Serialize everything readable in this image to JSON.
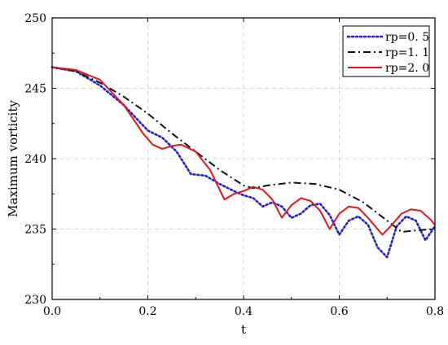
{
  "chart_data": {
    "type": "line",
    "xlabel": "t",
    "ylabel": "Maximum vorticity",
    "xlim": [
      0.0,
      0.8
    ],
    "ylim": [
      230,
      250
    ],
    "xticks": [
      "0.0",
      "0.2",
      "0.4",
      "0.6",
      "0.8"
    ],
    "yticks": [
      "230",
      "235",
      "240",
      "245",
      "250"
    ],
    "grid": true,
    "legend_position": "top-right",
    "series": [
      {
        "name": "rp=0. 5",
        "color": "#1f1fd6",
        "style": "dotted",
        "x": [
          0.0,
          0.05,
          0.1,
          0.15,
          0.2,
          0.23,
          0.26,
          0.29,
          0.32,
          0.35,
          0.38,
          0.4,
          0.42,
          0.44,
          0.46,
          0.48,
          0.5,
          0.52,
          0.54,
          0.56,
          0.58,
          0.6,
          0.62,
          0.64,
          0.66,
          0.68,
          0.7,
          0.72,
          0.74,
          0.76,
          0.78,
          0.8
        ],
        "y": [
          246.5,
          246.2,
          245.2,
          243.8,
          242.0,
          241.5,
          240.5,
          238.9,
          238.8,
          238.2,
          237.7,
          237.4,
          237.2,
          236.6,
          236.9,
          236.6,
          235.8,
          236.1,
          236.7,
          236.8,
          236.0,
          234.6,
          235.6,
          235.9,
          235.3,
          233.7,
          233.0,
          235.2,
          235.9,
          235.6,
          234.2,
          235.2
        ]
      },
      {
        "name": "rp=1. 1",
        "color": "#111111",
        "style": "dashdot",
        "x": [
          0.0,
          0.05,
          0.1,
          0.15,
          0.2,
          0.25,
          0.3,
          0.35,
          0.4,
          0.42,
          0.45,
          0.5,
          0.55,
          0.6,
          0.65,
          0.7,
          0.73,
          0.76,
          0.8
        ],
        "y": [
          246.5,
          246.2,
          245.4,
          244.4,
          243.2,
          241.8,
          240.5,
          239.2,
          238.1,
          237.9,
          238.1,
          238.3,
          238.2,
          237.8,
          236.9,
          235.6,
          234.8,
          234.9,
          235.0
        ]
      },
      {
        "name": "rp=2. 0",
        "color": "#e8141c",
        "style": "solid",
        "x": [
          0.0,
          0.05,
          0.1,
          0.15,
          0.19,
          0.21,
          0.23,
          0.25,
          0.27,
          0.3,
          0.33,
          0.36,
          0.38,
          0.4,
          0.42,
          0.44,
          0.46,
          0.48,
          0.5,
          0.52,
          0.54,
          0.56,
          0.58,
          0.6,
          0.62,
          0.64,
          0.66,
          0.69,
          0.71,
          0.73,
          0.75,
          0.77,
          0.79,
          0.8
        ],
        "y": [
          246.5,
          246.3,
          245.6,
          243.8,
          241.8,
          241.0,
          240.7,
          240.9,
          241.0,
          240.5,
          239.2,
          237.1,
          237.5,
          237.7,
          238.0,
          237.8,
          237.1,
          235.8,
          236.7,
          237.2,
          237.0,
          236.3,
          235.0,
          236.1,
          236.6,
          236.5,
          235.8,
          234.6,
          235.3,
          236.1,
          236.4,
          236.3,
          235.7,
          235.3
        ]
      }
    ]
  }
}
